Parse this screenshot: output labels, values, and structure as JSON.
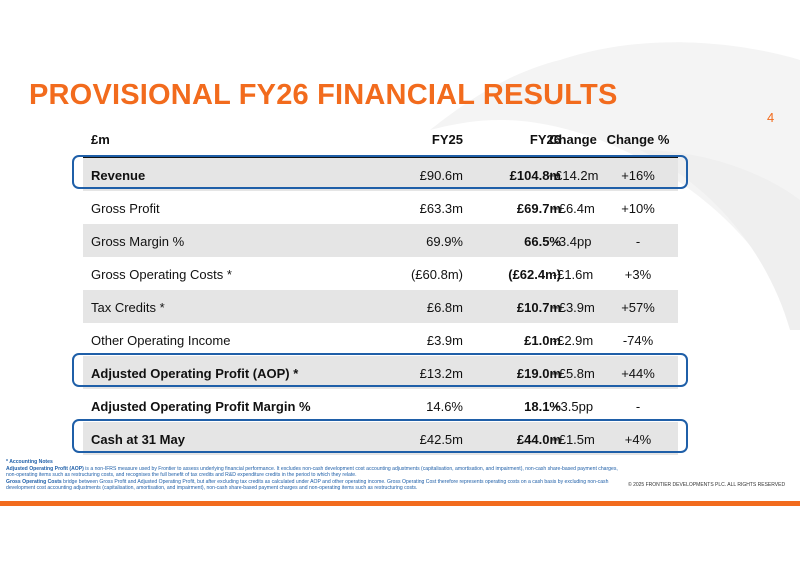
{
  "title": "PROVISIONAL FY26 FINANCIAL RESULTS",
  "page_number": "4",
  "table": {
    "headers": {
      "label": "£m",
      "fy25": "FY25",
      "fy26": "FY26",
      "change": "Change",
      "change_pct": "Change %"
    },
    "rows": [
      {
        "label": "Revenue",
        "fy25": "£90.6m",
        "fy26": "£104.8m",
        "change": "+£14.2m",
        "change_pct": "+16%",
        "bold": true,
        "highlighted": true
      },
      {
        "label": "Gross Profit",
        "fy25": "£63.3m",
        "fy26": "£69.7m",
        "change": "+£6.4m",
        "change_pct": "+10%",
        "bold": false,
        "highlighted": false
      },
      {
        "label": "Gross Margin %",
        "fy25": "69.9%",
        "fy26": "66.5%",
        "change": "-3.4pp",
        "change_pct": "-",
        "bold": false,
        "highlighted": false
      },
      {
        "label": "Gross Operating Costs *",
        "fy25": "(£60.8m)",
        "fy26": "(£62.4m)",
        "change": "-£1.6m",
        "change_pct": "+3%",
        "bold": false,
        "highlighted": false
      },
      {
        "label": "Tax Credits *",
        "fy25": "£6.8m",
        "fy26": "£10.7m",
        "change": "+£3.9m",
        "change_pct": "+57%",
        "bold": false,
        "highlighted": false
      },
      {
        "label": "Other Operating Income",
        "fy25": "£3.9m",
        "fy26": "£1.0m",
        "change": "-£2.9m",
        "change_pct": "-74%",
        "bold": false,
        "highlighted": false
      },
      {
        "label": "Adjusted Operating Profit (AOP) *",
        "fy25": "£13.2m",
        "fy26": "£19.0m",
        "change": "+£5.8m",
        "change_pct": "+44%",
        "bold": true,
        "highlighted": true
      },
      {
        "label": "Adjusted Operating Profit Margin %",
        "fy25": "14.6%",
        "fy26": "18.1%",
        "change": "+3.5pp",
        "change_pct": "-",
        "bold": true,
        "highlighted": false
      },
      {
        "label": "Cash at 31 May",
        "fy25": "£42.5m",
        "fy26": "£44.0m",
        "change": "+£1.5m",
        "change_pct": "+4%",
        "bold": true,
        "highlighted": true
      }
    ]
  },
  "notes": {
    "heading": "* Accounting Notes",
    "aop_term": "Adjusted Operating Profit (AOP)",
    "aop_text": " is a non-IFRS measure used by Frontier to assess underlying financial performance. It excludes non-cash development cost accounting adjustments (capitalisation, amortisation, and impairment), non-cash share-based payment charges, non-operating items such as restructuring costs, and recognises the full benefit of tax credits and R&D expenditure credits in the period to which they relate.",
    "goc_term": "Gross Operating Costs",
    "goc_text": " bridge between Gross Profit and Adjusted Operating Profit, but after excluding tax credits as calculated under AOP and other operating income. Gross Operating Cost therefore represents operating costs on a cash basis by excluding non-cash development cost accounting adjustments (capitalisation, amortisation, and impairment), non-cash share-based payment charges and non-operating items such as restructuring costs."
  },
  "copyright": "© 2025 FRONTIER DEVELOPMENTS PLC. ALL RIGHTS RESERVED",
  "colors": {
    "accent": "#f26b1d",
    "highlight_border": "#1f5fa8",
    "row_shade": "#e5e5e5"
  }
}
